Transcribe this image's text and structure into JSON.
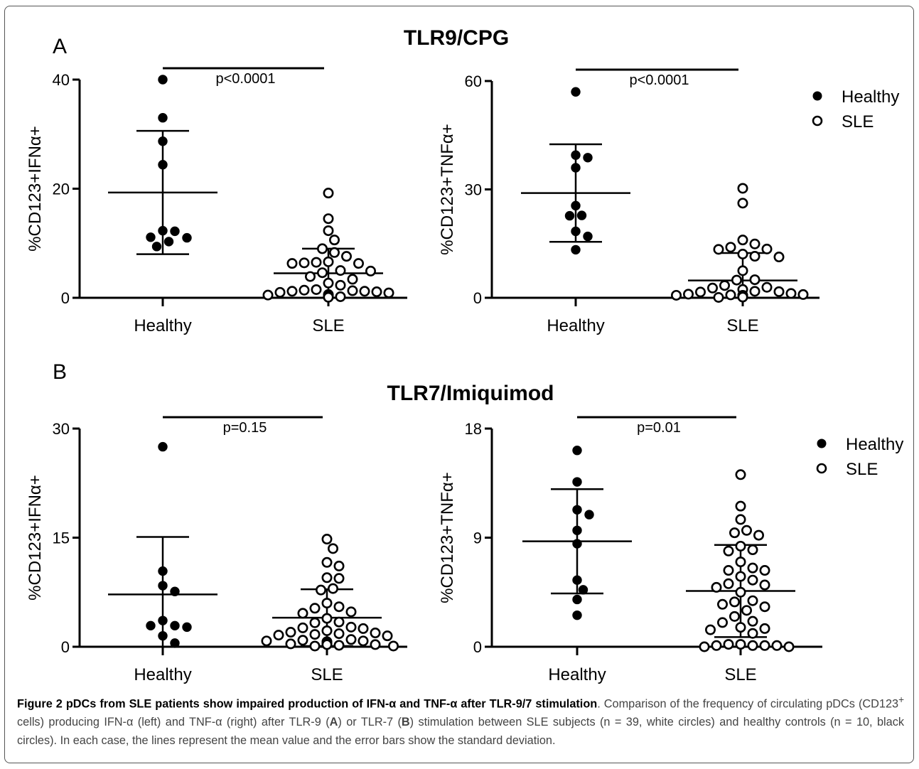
{
  "figure": {
    "panel_a_letter": "A",
    "panel_b_letter": "B",
    "section_a_title": "TLR9/CPG",
    "section_b_title": "TLR7/Imiquimod"
  },
  "caption": {
    "title": "Figure 2 pDCs from SLE patients show impaired production of IFN-α and TNF-α after TLR-9/7 stimulation",
    "text_before_sup": ". Comparison of the frequency of circulating pDCs (CD123",
    "sup": "+",
    "text_after_sup": " cells) producing IFN-α (left) and TNF-α (right) after TLR-9 (",
    "bold_a": "A",
    "text_mid": ") or TLR-7 (",
    "bold_b": "B",
    "text_end": ") stimulation between SLE subjects (n = 39, white circles) and healthy controls (n = 10, black circles). In each case, the lines represent the mean value and the error bars show the standard deviation."
  },
  "colors": {
    "healthy_fill": "#000000",
    "sle_fill": "#ffffff",
    "stroke": "#000000"
  },
  "chart_data": [
    {
      "type": "scatter",
      "id": "A-left",
      "title": "",
      "xlabel": "",
      "ylabel": "%CD123+IFNα+",
      "ylim": [
        0,
        40
      ],
      "yticks": [
        0,
        20,
        40
      ],
      "categories": [
        "Healthy",
        "SLE"
      ],
      "pvalue": "p<0.0001",
      "series": [
        {
          "name": "Healthy",
          "mean": 19.3,
          "sd": 11.3,
          "values": [
            40,
            33,
            28.7,
            24.4,
            12.3,
            12.2,
            11.0,
            11.1,
            9.4,
            10.3
          ]
        },
        {
          "name": "SLE",
          "mean": 4.5,
          "sd": 4.5,
          "values": [
            19.2,
            14.5,
            12.3,
            10.6,
            9.0,
            8.3,
            7.6,
            6.6,
            6.5,
            6.4,
            6.3,
            6.3,
            5.0,
            4.9,
            4.6,
            3.9,
            3.4,
            2.7,
            2.3,
            1.5,
            1.4,
            1.3,
            1.2,
            1.2,
            1.1,
            1.0,
            0.9,
            0.6,
            0.5,
            0.4,
            0.4,
            0.3,
            0.3,
            0.3,
            0.3,
            0.2,
            0.2,
            0.1,
            0.1
          ]
        }
      ]
    },
    {
      "type": "scatter",
      "id": "A-right",
      "title": "",
      "xlabel": "",
      "ylabel": "%CD123+TNFα+",
      "ylim": [
        0,
        60
      ],
      "yticks": [
        0,
        30,
        60
      ],
      "categories": [
        "Healthy",
        "SLE"
      ],
      "pvalue": "p<0.0001",
      "legend": [
        "Healthy",
        "SLE"
      ],
      "series": [
        {
          "name": "Healthy",
          "mean": 29,
          "sd": 13.5,
          "values": [
            57,
            39.5,
            38.8,
            36,
            25.5,
            22.7,
            22.8,
            18.4,
            17.0,
            13.3
          ]
        },
        {
          "name": "SLE",
          "mean": 4.8,
          "sd": 7.6,
          "values": [
            30.3,
            26.2,
            16.0,
            14.9,
            14.0,
            13.4,
            13.5,
            12.1,
            11.3,
            11.5,
            7.5,
            5.0,
            4.9,
            3.4,
            2.9,
            2.7,
            2.3,
            1.8,
            1.7,
            1.6,
            1.2,
            1.0,
            0.9,
            0.8,
            0.7,
            0.7,
            0.6,
            0.6,
            0.5,
            0.5,
            0.5,
            0.4,
            0.4,
            0.4,
            0.3,
            0.3,
            0.2,
            0.2,
            0.1
          ]
        }
      ]
    },
    {
      "type": "scatter",
      "id": "B-left",
      "title": "",
      "xlabel": "",
      "ylabel": "%CD123+IFNα+",
      "ylim": [
        0,
        30
      ],
      "yticks": [
        0,
        15,
        30
      ],
      "categories": [
        "Healthy",
        "SLE"
      ],
      "pvalue": "p=0.15",
      "series": [
        {
          "name": "Healthy",
          "mean": 7.2,
          "sd": 7.9,
          "values": [
            27.5,
            10.4,
            8.4,
            7.6,
            3.6,
            2.9,
            2.9,
            2.7,
            1.5,
            0.5
          ]
        },
        {
          "name": "SLE",
          "mean": 4.0,
          "sd": 3.9,
          "values": [
            14.8,
            13.5,
            11.6,
            11.1,
            9.4,
            9.5,
            8.0,
            7.8,
            6.0,
            5.5,
            5.3,
            4.8,
            4.6,
            3.9,
            3.4,
            3.3,
            2.7,
            2.6,
            2.5,
            2.2,
            2.0,
            1.9,
            1.8,
            1.7,
            1.6,
            1.5,
            1.0,
            0.9,
            0.8,
            0.8,
            0.7,
            0.6,
            0.4,
            0.4,
            0.3,
            0.3,
            0.2,
            0.1,
            0.1
          ]
        }
      ]
    },
    {
      "type": "scatter",
      "id": "B-right",
      "title": "",
      "xlabel": "",
      "ylabel": "%CD123+TNFα+",
      "ylim": [
        0,
        18
      ],
      "yticks": [
        0,
        9,
        18
      ],
      "categories": [
        "Healthy",
        "SLE"
      ],
      "pvalue": "p=0.01",
      "legend": [
        "Healthy",
        "SLE"
      ],
      "series": [
        {
          "name": "Healthy",
          "mean": 8.7,
          "sd": 4.3,
          "values": [
            16.2,
            13.6,
            11.3,
            10.9,
            9.6,
            8.5,
            5.5,
            4.7,
            3.9,
            2.6
          ]
        },
        {
          "name": "SLE",
          "mean": 4.6,
          "sd": 3.8,
          "values": [
            14.2,
            11.6,
            10.5,
            9.6,
            9.4,
            9.2,
            8.3,
            8.0,
            7.9,
            7.0,
            6.5,
            6.3,
            6.3,
            5.8,
            5.5,
            5.2,
            5.1,
            4.9,
            4.5,
            3.8,
            3.7,
            3.5,
            3.3,
            3.0,
            2.5,
            2.1,
            2.0,
            1.6,
            1.5,
            1.4,
            1.1,
            0.2,
            0.2,
            0.1,
            0.1,
            0.1,
            0.1,
            0.0,
            0.0
          ]
        }
      ]
    }
  ]
}
